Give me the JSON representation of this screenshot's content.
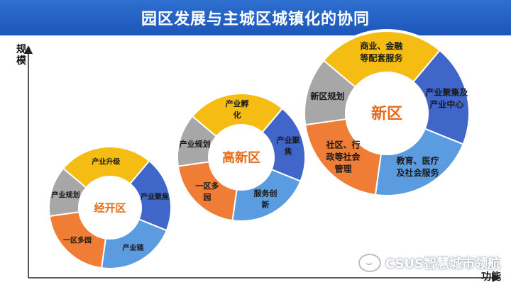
{
  "title": "园区发展与主城区城镇化的协同",
  "axes": {
    "y_label": "规模",
    "x_label": "功能"
  },
  "watermark": "CSUS智慧城市领航",
  "colors": {
    "title_bg": "#1f5ec4",
    "yellow": "#f5bc14",
    "blue_dark": "#3f66c8",
    "blue_light": "#5b9be0",
    "orange": "#f07d35",
    "gray": "#a7a7a7",
    "center_text": "#e46c1a"
  },
  "rings": [
    {
      "center_label": "经开区",
      "segments": [
        {
          "label": "产业升级",
          "color": "yellow"
        },
        {
          "label": "产业聚焦",
          "color": "blue_dark"
        },
        {
          "label": "产业链",
          "color": "blue_light"
        },
        {
          "label": "一区多园",
          "color": "orange"
        },
        {
          "label": "产业规划",
          "color": "gray"
        }
      ]
    },
    {
      "center_label": "高新区",
      "segments": [
        {
          "label": "产业孵化",
          "color": "yellow"
        },
        {
          "label": "产业聚焦",
          "color": "blue_dark"
        },
        {
          "label": "服务创新",
          "color": "blue_light"
        },
        {
          "label": "一区多园",
          "color": "orange"
        },
        {
          "label": "产业规划",
          "color": "gray"
        }
      ]
    },
    {
      "center_label": "新区",
      "segments": [
        {
          "label": "商业、金融等配套服务",
          "color": "yellow"
        },
        {
          "label": "产业聚集及产业中心",
          "color": "blue_dark"
        },
        {
          "label": "教育、医疗及社会服务",
          "color": "blue_light"
        },
        {
          "label": "社区、行政等社会管理",
          "color": "orange"
        },
        {
          "label": "新区规划",
          "color": "gray"
        }
      ]
    }
  ]
}
